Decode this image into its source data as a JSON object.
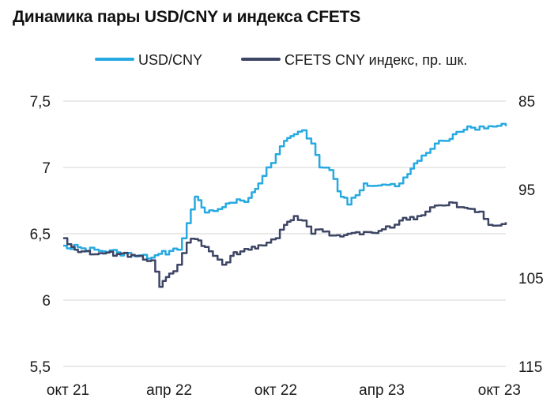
{
  "title": "Динамика пары USD/CNY и индекса CFETS",
  "colors": {
    "usd": "#27a9e1",
    "cfets": "#3d4565",
    "grid": "#d6d6d6"
  },
  "chart_data": {
    "type": "line",
    "title": "Динамика пары USD/CNY и индекса CFETS",
    "x_ticks": [
      "окт 21",
      "апр 22",
      "окт 22",
      "апр 23",
      "окт 23"
    ],
    "x_range": [
      "2021-10-01",
      "2023-10-31"
    ],
    "y_left": {
      "ticks": [
        "7,5",
        "7",
        "6,5",
        "6",
        "5,5"
      ],
      "range": [
        5.5,
        7.5
      ]
    },
    "y_right": {
      "ticks": [
        "85",
        "95",
        "105",
        "115"
      ],
      "range": [
        85,
        115
      ],
      "inverted": true
    },
    "grid": true,
    "legend_position": "top",
    "series": [
      {
        "name": "USD/CNY",
        "axis": "left",
        "x": [
          "2021-10-01",
          "2021-11-01",
          "2021-12-01",
          "2022-01-01",
          "2022-02-01",
          "2022-03-01",
          "2022-04-01",
          "2022-04-15",
          "2022-05-01",
          "2022-05-15",
          "2022-06-01",
          "2022-07-01",
          "2022-08-01",
          "2022-08-15",
          "2022-09-01",
          "2022-09-15",
          "2022-10-01",
          "2022-10-15",
          "2022-11-01",
          "2022-11-15",
          "2022-12-01",
          "2022-12-15",
          "2023-01-01",
          "2023-01-15",
          "2023-02-01",
          "2023-03-01",
          "2023-04-01",
          "2023-05-01",
          "2023-05-15",
          "2023-06-01",
          "2023-07-01",
          "2023-07-15",
          "2023-08-01",
          "2023-09-01",
          "2023-10-01",
          "2023-10-31"
        ],
        "y": [
          6.41,
          6.39,
          6.37,
          6.36,
          6.33,
          6.32,
          6.37,
          6.38,
          6.58,
          6.78,
          6.66,
          6.7,
          6.75,
          6.77,
          6.88,
          7.0,
          7.1,
          7.2,
          7.25,
          7.28,
          7.18,
          7.0,
          6.98,
          6.82,
          6.72,
          6.88,
          6.87,
          6.88,
          6.95,
          7.05,
          7.18,
          7.2,
          7.25,
          7.3,
          7.31,
          7.31
        ]
      },
      {
        "name": "CFETS CNY индекс, пр. шк.",
        "axis": "right",
        "x": [
          "2021-10-01",
          "2021-10-15",
          "2021-11-01",
          "2021-12-01",
          "2022-01-01",
          "2022-02-01",
          "2022-03-01",
          "2022-03-15",
          "2022-04-01",
          "2022-04-15",
          "2022-05-01",
          "2022-05-15",
          "2022-06-01",
          "2022-06-15",
          "2022-07-01",
          "2022-07-15",
          "2022-08-01",
          "2022-08-15",
          "2022-09-01",
          "2022-09-15",
          "2022-10-01",
          "2022-10-15",
          "2022-11-01",
          "2022-11-15",
          "2022-12-01",
          "2022-12-15",
          "2023-01-01",
          "2023-02-01",
          "2023-03-01",
          "2023-03-15",
          "2023-04-01",
          "2023-04-15",
          "2023-05-01",
          "2023-06-01",
          "2023-06-15",
          "2023-07-01",
          "2023-08-01",
          "2023-08-15",
          "2023-09-01",
          "2023-09-15",
          "2023-10-01",
          "2023-10-31"
        ],
        "y": [
          100.5,
          101.5,
          102.0,
          102.2,
          102.3,
          102.5,
          103.0,
          106.0,
          104.5,
          103.5,
          101.0,
          100.6,
          101.5,
          102.5,
          103.5,
          102.5,
          102.0,
          101.8,
          101.3,
          101.0,
          100.5,
          99.0,
          98.0,
          98.5,
          100.0,
          99.5,
          100.2,
          100.0,
          99.8,
          99.9,
          99.5,
          99.3,
          98.5,
          98.0,
          97.5,
          96.8,
          96.5,
          97.0,
          97.2,
          97.5,
          99.0,
          98.7
        ]
      }
    ]
  }
}
